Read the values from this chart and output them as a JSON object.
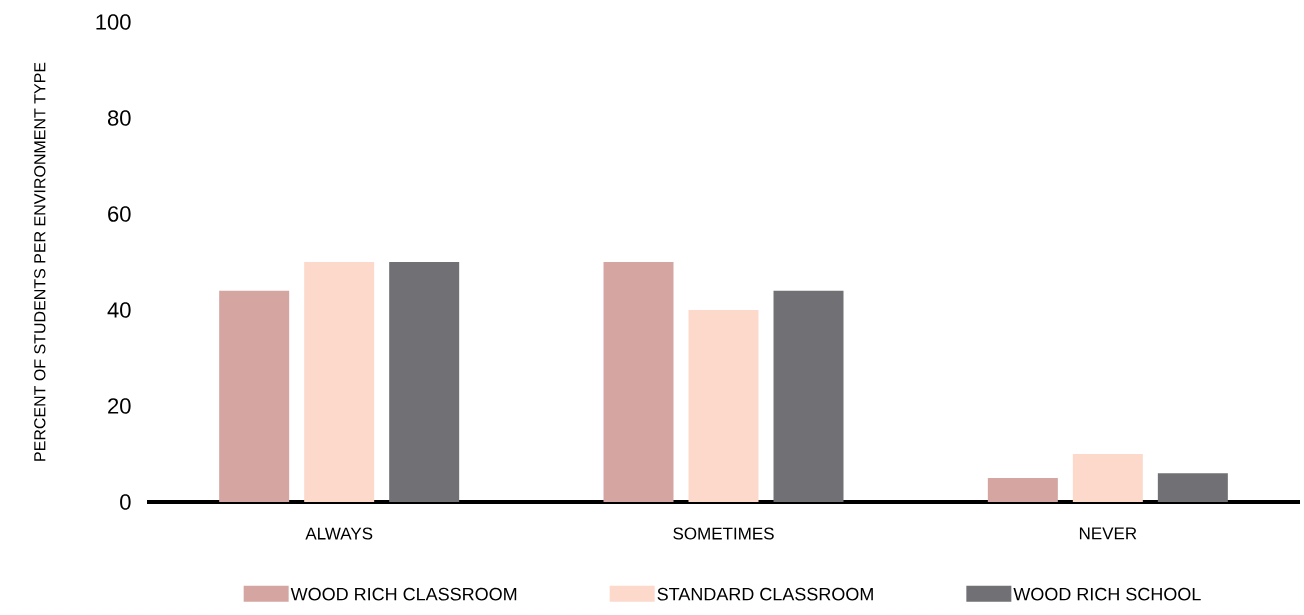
{
  "chart_data": {
    "type": "bar",
    "ylabel": "PERCENT OF STUDENTS PER ENVIRONMENT TYPE",
    "categories": [
      "ALWAYS",
      "SOMETIMES",
      "NEVER"
    ],
    "series": [
      {
        "name": "WOOD RICH CLASSROOM",
        "color": "#d5a6a1",
        "values": [
          44,
          50,
          5
        ]
      },
      {
        "name": "STANDARD CLASSROOM",
        "color": "#fdd9cc",
        "values": [
          50,
          40,
          10
        ]
      },
      {
        "name": "WOOD RICH SCHOOL",
        "color": "#717075",
        "values": [
          50,
          44,
          6
        ]
      }
    ],
    "ylim": [
      0,
      100
    ],
    "yticks": [
      0,
      20,
      40,
      60,
      80,
      100
    ],
    "legend": "bottom"
  }
}
